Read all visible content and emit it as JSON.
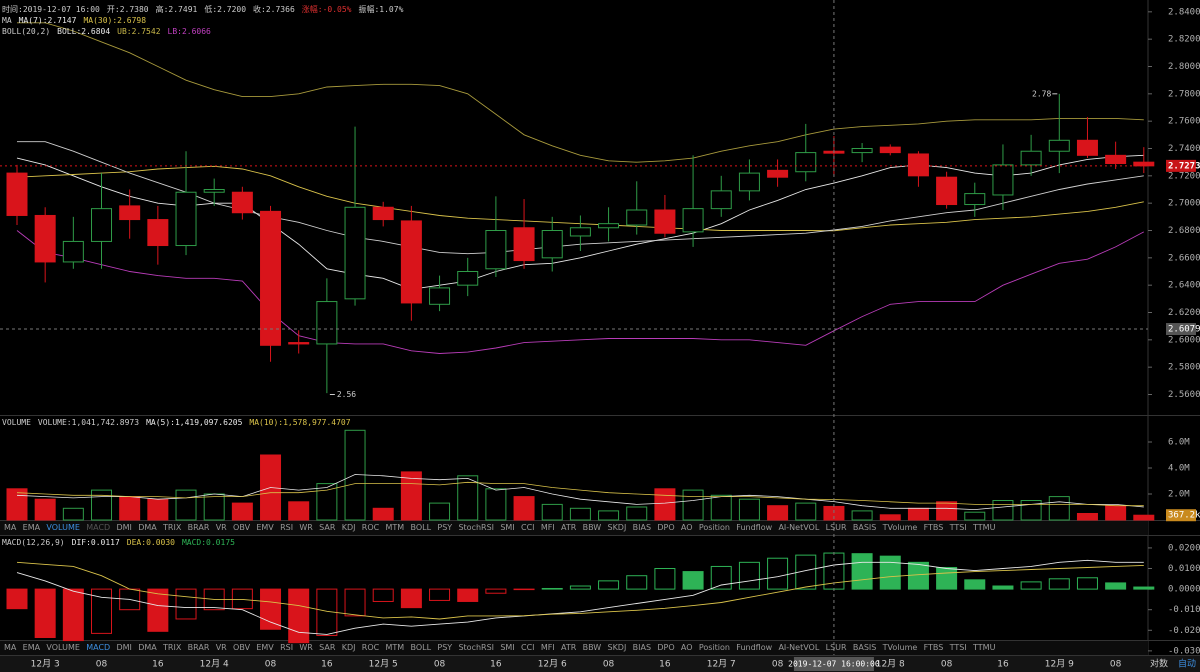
{
  "chart_data": [
    {
      "type": "candlestick",
      "header": [
        [
          {
            "text": "时间:2019-12-07 16:00",
            "color": "#cccccc"
          },
          {
            "text": "开:2.7380",
            "color": "#cccccc"
          },
          {
            "text": "高:2.7491",
            "color": "#cccccc"
          },
          {
            "text": "低:2.7200",
            "color": "#cccccc"
          },
          {
            "text": "收:2.7366",
            "color": "#cccccc"
          },
          {
            "text": "涨幅:-0.05%",
            "color": "#e03030"
          },
          {
            "text": "振幅:1.07%",
            "color": "#cccccc"
          }
        ],
        [
          {
            "text": "MA",
            "color": "#cccccc"
          },
          {
            "text": "MA(7):2.7147",
            "color": "#e8e8e8"
          },
          {
            "text": "MA(30):2.6798",
            "color": "#d9c24a"
          }
        ],
        [
          {
            "text": "BOLL(20,2)",
            "color": "#cccccc"
          },
          {
            "text": "BOLL:2.6804",
            "color": "#e8e8e8"
          },
          {
            "text": "UB:2.7542",
            "color": "#c9b84a"
          },
          {
            "text": "LB:2.6066",
            "color": "#c040c0"
          }
        ]
      ],
      "categories": [
        null,
        "12月 3",
        null,
        "08",
        null,
        "16",
        null,
        "12月 4",
        null,
        "08",
        null,
        "16",
        null,
        "12月 5",
        null,
        "08",
        null,
        "16",
        null,
        "12月 6",
        null,
        "08",
        null,
        "16",
        null,
        "12月 7",
        null,
        "08",
        null,
        null,
        null,
        "12月 8",
        null,
        "08",
        null,
        "16",
        null,
        "12月 9",
        null,
        "08",
        null
      ],
      "open": [
        2.722,
        2.691,
        2.657,
        2.672,
        2.698,
        2.688,
        2.669,
        2.708,
        2.708,
        2.694,
        2.598,
        2.597,
        2.63,
        2.697,
        2.687,
        2.626,
        2.64,
        2.652,
        2.682,
        2.66,
        2.676,
        2.682,
        2.684,
        2.695,
        2.679,
        2.696,
        2.709,
        2.724,
        2.723,
        2.738,
        2.737,
        2.741,
        2.736,
        2.719,
        2.699,
        2.706,
        2.728,
        2.738,
        2.746,
        2.735,
        2.73
      ],
      "high": [
        2.728,
        2.697,
        2.69,
        2.722,
        2.71,
        2.698,
        2.738,
        2.718,
        2.712,
        2.698,
        2.607,
        2.645,
        2.756,
        2.701,
        2.698,
        2.647,
        2.66,
        2.705,
        2.703,
        2.69,
        2.691,
        2.697,
        2.716,
        2.706,
        2.735,
        2.72,
        2.732,
        2.732,
        2.758,
        2.7491,
        2.744,
        2.743,
        2.738,
        2.723,
        2.715,
        2.743,
        2.75,
        2.78,
        2.763,
        2.745,
        2.741
      ],
      "low": [
        2.684,
        2.642,
        2.652,
        2.652,
        2.674,
        2.655,
        2.662,
        2.698,
        2.688,
        2.584,
        2.59,
        2.561,
        2.625,
        2.683,
        2.614,
        2.621,
        2.632,
        2.646,
        2.652,
        2.65,
        2.665,
        2.672,
        2.677,
        2.675,
        2.668,
        2.69,
        2.702,
        2.712,
        2.716,
        2.72,
        2.73,
        2.735,
        2.712,
        2.696,
        2.69,
        2.695,
        2.72,
        2.722,
        2.733,
        2.725,
        2.722
      ],
      "close": [
        2.691,
        2.657,
        2.672,
        2.696,
        2.688,
        2.669,
        2.708,
        2.71,
        2.693,
        2.596,
        2.597,
        2.628,
        2.697,
        2.688,
        2.627,
        2.638,
        2.65,
        2.68,
        2.658,
        2.68,
        2.682,
        2.685,
        2.695,
        2.678,
        2.696,
        2.709,
        2.722,
        2.719,
        2.737,
        2.7366,
        2.74,
        2.737,
        2.72,
        2.699,
        2.707,
        2.728,
        2.738,
        2.746,
        2.735,
        2.729,
        2.7273
      ],
      "up_color": "#2f9c48",
      "down_color": "#d9141b",
      "lines": [
        {
          "color": "#e8e8e8",
          "values": [
            2.733,
            2.728,
            2.72,
            2.712,
            2.705,
            2.7,
            2.698,
            2.7,
            2.7,
            2.685,
            2.67,
            2.652,
            2.648,
            2.645,
            2.637,
            2.64,
            2.643,
            2.65,
            2.655,
            2.656,
            2.66,
            2.665,
            2.67,
            2.674,
            2.678,
            2.685,
            2.695,
            2.702,
            2.71,
            2.7147,
            2.72,
            2.726,
            2.728,
            2.726,
            2.722,
            2.72,
            2.722,
            2.728,
            2.732,
            2.734,
            2.735
          ]
        },
        {
          "color": "#d9c24a",
          "values": [
            2.719,
            2.72,
            2.721,
            2.722,
            2.723,
            2.725,
            2.726,
            2.727,
            2.725,
            2.72,
            2.712,
            2.705,
            2.7,
            2.697,
            2.694,
            2.691,
            2.689,
            2.688,
            2.687,
            2.686,
            2.685,
            2.684,
            2.683,
            2.682,
            2.681,
            2.68,
            2.68,
            2.68,
            2.68,
            2.6798,
            2.682,
            2.684,
            2.685,
            2.686,
            2.688,
            2.689,
            2.69,
            2.692,
            2.694,
            2.697,
            2.701
          ]
        },
        {
          "color": "#cfcfcf",
          "values": [
            2.745,
            2.745,
            2.738,
            2.73,
            2.722,
            2.715,
            2.708,
            2.7,
            2.695,
            2.69,
            2.686,
            2.68,
            2.675,
            2.672,
            2.668,
            2.664,
            2.663,
            2.664,
            2.666,
            2.668,
            2.67,
            2.671,
            2.672,
            2.673,
            2.674,
            2.675,
            2.676,
            2.677,
            2.678,
            2.6804,
            2.683,
            2.687,
            2.69,
            2.693,
            2.695,
            2.7,
            2.705,
            2.71,
            2.714,
            2.717,
            2.72
          ]
        },
        {
          "color": "#a89a3c",
          "values": [
            2.832,
            2.832,
            2.826,
            2.818,
            2.81,
            2.8,
            2.79,
            2.783,
            2.778,
            2.778,
            2.78,
            2.785,
            2.786,
            2.787,
            2.787,
            2.786,
            2.78,
            2.765,
            2.75,
            2.742,
            2.735,
            2.731,
            2.73,
            2.731,
            2.733,
            2.738,
            2.742,
            2.745,
            2.75,
            2.7542,
            2.756,
            2.757,
            2.758,
            2.76,
            2.761,
            2.761,
            2.761,
            2.762,
            2.762,
            2.762,
            2.761
          ]
        },
        {
          "color": "#b83cb8",
          "values": [
            2.68,
            2.664,
            2.66,
            2.655,
            2.65,
            2.647,
            2.645,
            2.645,
            2.643,
            2.62,
            2.603,
            2.598,
            2.597,
            2.597,
            2.592,
            2.59,
            2.591,
            2.594,
            2.598,
            2.599,
            2.6,
            2.601,
            2.601,
            2.601,
            2.601,
            2.6,
            2.6,
            2.598,
            2.596,
            2.6066,
            2.617,
            2.626,
            2.628,
            2.628,
            2.628,
            2.64,
            2.648,
            2.656,
            2.659,
            2.668,
            2.679
          ]
        }
      ],
      "ylim": [
        2.545,
        2.845
      ],
      "yticks": [
        {
          "value": 2.84,
          "label": "2.8400"
        },
        {
          "value": 2.82,
          "label": "2.8200"
        },
        {
          "value": 2.8,
          "label": "2.8000"
        },
        {
          "value": 2.78,
          "label": "2.7800"
        },
        {
          "value": 2.76,
          "label": "2.7600"
        },
        {
          "value": 2.74,
          "label": "2.7400"
        },
        {
          "value": 2.72,
          "label": "2.7200"
        },
        {
          "value": 2.7,
          "label": "2.7000"
        },
        {
          "value": 2.68,
          "label": "2.6800"
        },
        {
          "value": 2.66,
          "label": "2.6600"
        },
        {
          "value": 2.64,
          "label": "2.6400"
        },
        {
          "value": 2.62,
          "label": "2.6200"
        },
        {
          "value": 2.6,
          "label": "2.6000"
        },
        {
          "value": 2.58,
          "label": "2.5800"
        },
        {
          "value": 2.56,
          "label": "2.5600"
        }
      ],
      "last_price": 2.7273,
      "crosshair_price": 2.6079,
      "high_mark": 2.78,
      "low_mark": 2.56
    },
    {
      "type": "volume",
      "header": [
        [
          {
            "text": "VOLUME",
            "color": "#cccccc"
          },
          {
            "text": "VOLUME:1,041,742.8973",
            "color": "#cccccc"
          },
          {
            "text": "MA(5):1,419,097.6205",
            "color": "#e8e8e8"
          },
          {
            "text": "MA(10):1,578,977.4707",
            "color": "#d9c24a"
          }
        ]
      ],
      "values": [
        2400000,
        1600000,
        900000,
        2300000,
        1800000,
        1600000,
        2300000,
        2000000,
        1300000,
        5000000,
        1400000,
        2800000,
        6900000,
        900000,
        3700000,
        1300000,
        3400000,
        2400000,
        1800000,
        1200000,
        900000,
        700000,
        1000000,
        2400000,
        2300000,
        1900000,
        1600000,
        1100000,
        1300000,
        1041742.8973,
        700000,
        400000,
        900000,
        1400000,
        600000,
        1500000,
        1500000,
        1800000,
        500000,
        1100000,
        367200
      ],
      "last_value_label": "367.2k",
      "lines": [
        {
          "color": "#e8e8e8",
          "values": [
            1900000,
            1800000,
            1700000,
            1800000,
            1800000,
            1600000,
            1700000,
            2000000,
            1800000,
            2500000,
            2300000,
            2500000,
            3500000,
            3400000,
            3200000,
            3100000,
            3200000,
            2300000,
            2500000,
            2000000,
            1600000,
            1400000,
            1200000,
            1300000,
            1500000,
            1800000,
            1900000,
            1800000,
            1600000,
            1419097.6205,
            1100000,
            900000,
            900000,
            900000,
            800000,
            1000000,
            1200000,
            1400000,
            1200000,
            1200000,
            1000000
          ]
        },
        {
          "color": "#d9c24a",
          "values": [
            2100000,
            2000000,
            1900000,
            1900000,
            1800000,
            1800000,
            1700000,
            1800000,
            1800000,
            2100000,
            2100000,
            2300000,
            2800000,
            2800000,
            2800000,
            2700000,
            2900000,
            2800000,
            2800000,
            2500000,
            2300000,
            2100000,
            2000000,
            1900000,
            1800000,
            1800000,
            1800000,
            1700000,
            1600000,
            1578977.4707,
            1500000,
            1400000,
            1300000,
            1300000,
            1200000,
            1200000,
            1200000,
            1200000,
            1200000,
            1100000,
            1100000
          ]
        }
      ],
      "ylim": [
        0,
        8000000
      ],
      "yticks": [
        {
          "value": 6000000,
          "label": "6.0M"
        },
        {
          "value": 4000000,
          "label": "4.0M"
        },
        {
          "value": 2000000,
          "label": "2.0M"
        }
      ]
    },
    {
      "type": "macd",
      "header": [
        [
          {
            "text": "MACD(12,26,9)",
            "color": "#cccccc"
          },
          {
            "text": "DIF:0.0117",
            "color": "#e8e8e8"
          },
          {
            "text": "DEA:0.0030",
            "color": "#d9c24a"
          },
          {
            "text": "MACD:0.0175",
            "color": "#2eb356"
          }
        ]
      ],
      "values": [
        -0.0095,
        -0.0235,
        -0.025,
        -0.0215,
        -0.01,
        -0.0205,
        -0.0145,
        -0.01,
        -0.0095,
        -0.0195,
        -0.026,
        -0.0225,
        -0.013,
        -0.006,
        -0.009,
        -0.0055,
        -0.006,
        -0.002,
        -0.0002,
        0.0003,
        0.0015,
        0.004,
        0.0065,
        0.01,
        0.0085,
        0.011,
        0.013,
        0.015,
        0.0165,
        0.0175,
        0.0172,
        0.016,
        0.013,
        0.0105,
        0.0045,
        0.0015,
        0.0035,
        0.005,
        0.0055,
        0.003,
        0.001
      ],
      "dif": [
        0.008,
        0.004,
        -0.001,
        -0.004,
        -0.005,
        -0.008,
        -0.009,
        -0.009,
        -0.01,
        -0.016,
        -0.021,
        -0.022,
        -0.019,
        -0.017,
        -0.018,
        -0.017,
        -0.016,
        -0.014,
        -0.013,
        -0.012,
        -0.011,
        -0.009,
        -0.007,
        -0.005,
        -0.003,
        0.002,
        0.004,
        0.006,
        0.009,
        0.0117,
        0.013,
        0.013,
        0.012,
        0.01,
        0.009,
        0.01,
        0.011,
        0.013,
        0.014,
        0.013,
        0.013
      ],
      "dea": [
        0.013,
        0.012,
        0.011,
        0.0065,
        0.0,
        -0.0023,
        -0.0037,
        -0.005,
        -0.005,
        -0.0062,
        -0.008,
        -0.0108,
        -0.0125,
        -0.014,
        -0.0135,
        -0.0145,
        -0.013,
        -0.013,
        -0.0129,
        -0.0122,
        -0.0118,
        -0.011,
        -0.0103,
        -0.0093,
        -0.008,
        -0.0065,
        -0.004,
        -0.0015,
        0.001,
        0.003,
        0.0045,
        0.006,
        0.007,
        0.0078,
        0.0085,
        0.009,
        0.0095,
        0.01,
        0.0105,
        0.011,
        0.0115
      ],
      "dif_color": "#e8e8e8",
      "dea_color": "#d9c24a",
      "up_color": "#2eb356",
      "down_color": "#d9141b",
      "ylim": [
        -0.032,
        0.0253
      ],
      "yticks": [
        {
          "value": 0.02,
          "label": "0.0200"
        },
        {
          "value": 0.01,
          "label": "0.0100"
        },
        {
          "value": 0,
          "label": "0.0000"
        },
        {
          "value": -0.01,
          "label": "-0.0100"
        },
        {
          "value": -0.02,
          "label": "-0.0200"
        },
        {
          "value": -0.03,
          "label": "-0.0300"
        }
      ]
    }
  ],
  "indicator_tabs": [
    "MA",
    "EMA",
    "VOLUME",
    "MACD",
    "DMI",
    "DMA",
    "TRIX",
    "BRAR",
    "VR",
    "OBV",
    "EMV",
    "RSI",
    "WR",
    "SAR",
    "KDJ",
    "ROC",
    "MTM",
    "BOLL",
    "PSY",
    "StochRSI",
    "SMI",
    "CCI",
    "MFI",
    "ATR",
    "BBW",
    "SKDJ",
    "BIAS",
    "DPO",
    "AO",
    "Position",
    "Fundflow",
    "AI-NetVOL",
    "LSUR",
    "BASIS",
    "TVolume",
    "FTBS",
    "TTSI",
    "TTMU"
  ],
  "tab_rows": [
    {
      "active": 2,
      "dim": 3
    },
    {
      "active": 3
    }
  ],
  "crosshair_time": "2019-12-07 16:00:00",
  "controls": [
    "对数",
    "自动"
  ]
}
